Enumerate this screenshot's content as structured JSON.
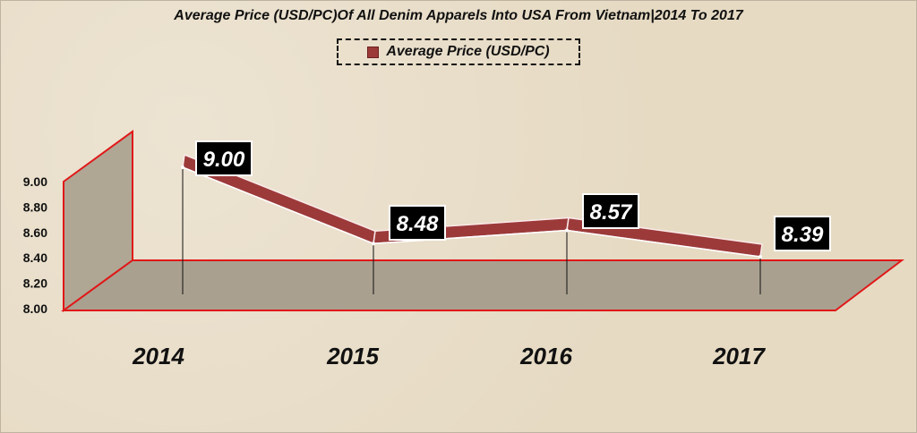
{
  "chart_data": {
    "type": "line",
    "title": "Average Price (USD/PC)Of All Denim Apparels Into USA From Vietnam|2014 To 2017",
    "categories": [
      "2014",
      "2015",
      "2016",
      "2017"
    ],
    "series": [
      {
        "name": "Average Price (USD/PC)",
        "values": [
          9.0,
          8.48,
          8.57,
          8.39
        ]
      }
    ],
    "data_labels": [
      "9.00",
      "8.48",
      "8.57",
      "8.39"
    ],
    "yticks": [
      "8.00",
      "8.20",
      "8.40",
      "8.60",
      "8.80",
      "9.00"
    ],
    "ylim": [
      8.0,
      9.0
    ],
    "legend_position": "top-center",
    "series_color": "#9c3a3a",
    "floor_color": "#a9a090",
    "edge_color": "#e01818",
    "xlabel": "",
    "ylabel": ""
  }
}
